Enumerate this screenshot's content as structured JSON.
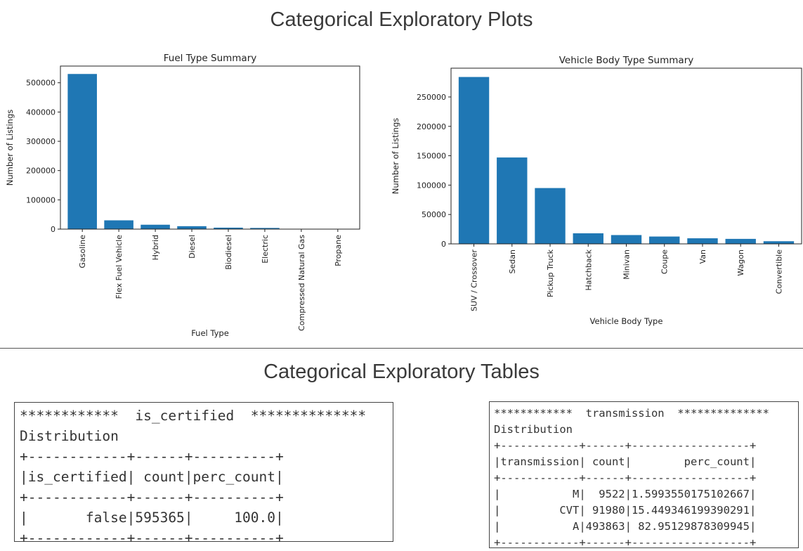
{
  "page": {
    "plots_heading": "Categorical Exploratory Plots",
    "tables_heading": "Categorical Exploratory Tables"
  },
  "chart_data": [
    {
      "type": "bar",
      "title": "Fuel Type Summary",
      "xlabel": "Fuel Type",
      "ylabel": "Number of Listings",
      "categories": [
        "Gasoline",
        "Flex Fuel Vehicle",
        "Hybrid",
        "Diesel",
        "Biodiesel",
        "Electric",
        "Compressed Natural Gas",
        "Propane"
      ],
      "values": [
        530000,
        30000,
        15000,
        10000,
        5000,
        4000,
        500,
        100
      ],
      "ylim": [
        0,
        557000
      ],
      "yticks": [
        0,
        100000,
        200000,
        300000,
        400000,
        500000
      ],
      "color": "#1f77b4",
      "grid": false
    },
    {
      "type": "bar",
      "title": "Vehicle Body Type Summary",
      "xlabel": "Vehicle Body Type",
      "ylabel": "Number of Listings",
      "categories": [
        "SUV / Crossover",
        "Sedan",
        "Pickup Truck",
        "Hatchback",
        "Minivan",
        "Coupe",
        "Van",
        "Wagon",
        "Convertible"
      ],
      "values": [
        284000,
        147000,
        95000,
        18000,
        15000,
        12500,
        9500,
        8500,
        4500
      ],
      "ylim": [
        0,
        299000
      ],
      "yticks": [
        0,
        50000,
        100000,
        150000,
        200000,
        250000
      ],
      "color": "#1f77b4",
      "grid": false
    }
  ],
  "tables": {
    "is_certified": {
      "lines": [
        "************  is_certified  **************",
        "Distribution",
        "+------------+------+----------+",
        "|is_certified| count|perc_count|",
        "+------------+------+----------+",
        "|       false|595365|     100.0|",
        "+------------+------+----------+"
      ]
    },
    "transmission": {
      "lines": [
        "************  transmission  **************",
        "Distribution",
        "+------------+------+------------------+",
        "|transmission| count|        perc_count|",
        "+------------+------+------------------+",
        "|           M|  9522|1.5993550175102667|",
        "|         CVT| 91980|15.449346199390291|",
        "|           A|493863| 82.95129878309945|",
        "+------------+------+------------------+"
      ]
    }
  }
}
